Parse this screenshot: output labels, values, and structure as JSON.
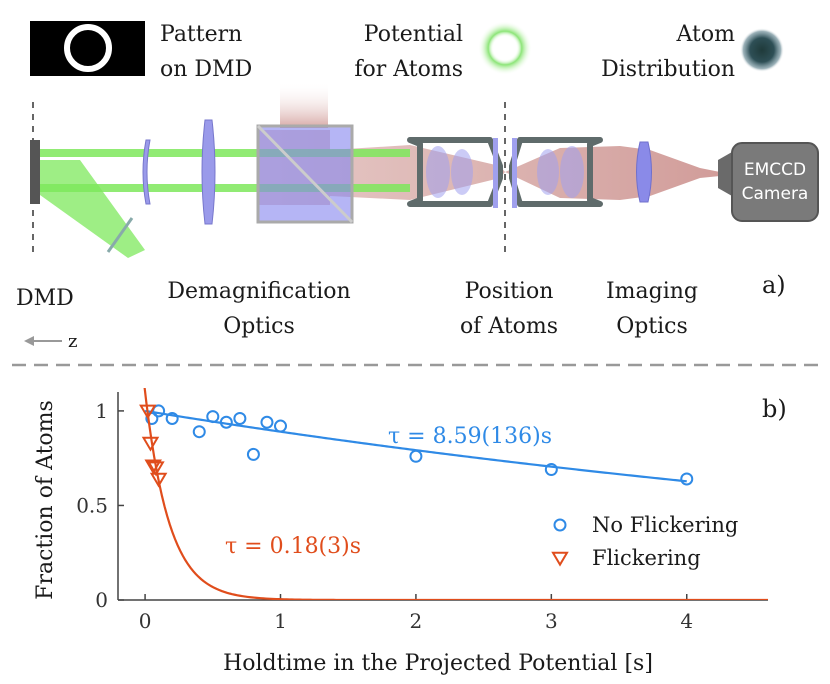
{
  "panel_a": {
    "panel_label": "a)",
    "legend": {
      "pattern_line1": "Pattern",
      "pattern_line2": "on DMD",
      "potential_line1": "Potential",
      "potential_line2": "for Atoms",
      "atom_line1": "Atom",
      "atom_line2": "Distribution"
    },
    "camera_line1": "EMCCD",
    "camera_line2": "Camera",
    "labels": {
      "dmd": "DMD",
      "demag_line1": "Demagnification",
      "demag_line2": "Optics",
      "position_line1": "Position",
      "position_line2": "of Atoms",
      "imaging_line1": "Imaging",
      "imaging_line2": "Optics"
    },
    "z_axis": "z",
    "colors": {
      "laser_green": "#7ee85c",
      "imaging_red": "#c98a86",
      "lens_blue": "#8c8ce6",
      "camera_gray": "#7a7a7a"
    }
  },
  "chart_data": {
    "type": "scatter",
    "panel_label": "b)",
    "xlabel": "Holdtime in the Projected Potential [s]",
    "ylabel": "Fraction of Atoms",
    "xlim": [
      -0.2,
      4.6
    ],
    "ylim": [
      0,
      1.1
    ],
    "xticks": [
      "0",
      "1",
      "2",
      "3",
      "4"
    ],
    "yticks": [
      "0",
      "0.5",
      "1"
    ],
    "grid": false,
    "legend_position": "bottom-right",
    "series": [
      {
        "name": "No Flickering",
        "marker": "circle",
        "color": "#2f8ae6",
        "x": [
          0.05,
          0.1,
          0.2,
          0.4,
          0.5,
          0.6,
          0.7,
          0.8,
          0.9,
          1.0,
          2.0,
          3.0,
          4.0
        ],
        "y": [
          0.96,
          1.0,
          0.96,
          0.89,
          0.97,
          0.94,
          0.96,
          0.77,
          0.94,
          0.92,
          0.76,
          0.69,
          0.64
        ],
        "fit": {
          "model": "exponential",
          "A": 1.0,
          "tau": 8.59,
          "label": "τ = 8.59(136)s"
        }
      },
      {
        "name": "Flickering",
        "marker": "triangle-down",
        "color": "#e04d1c",
        "x": [
          0.02,
          0.04,
          0.06,
          0.08,
          0.1
        ],
        "y": [
          1.0,
          0.83,
          0.71,
          0.7,
          0.64
        ],
        "fit": {
          "model": "exponential",
          "A": 1.1,
          "tau": 0.18,
          "label": "τ = 0.18(3)s"
        }
      }
    ]
  }
}
